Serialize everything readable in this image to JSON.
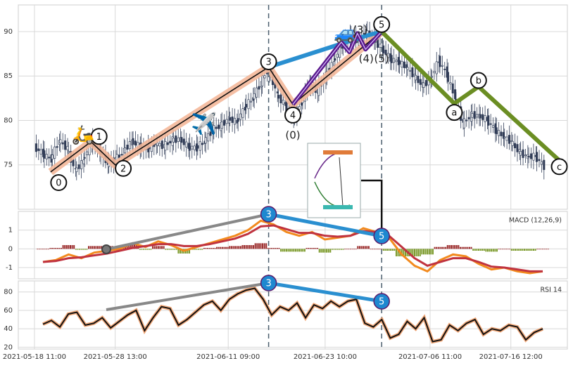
{
  "chart_data": [
    {
      "type": "candlestick",
      "panel": "price",
      "ylim": [
        70,
        93
      ],
      "yticks": [
        75,
        80,
        85,
        90
      ],
      "price_series": [
        [
          "2021-05-18",
          77.0
        ],
        [
          "2021-05-19",
          76.2
        ],
        [
          "2021-05-20",
          75.6
        ],
        [
          "2021-05-21",
          77.8
        ],
        [
          "2021-05-22",
          76.8
        ],
        [
          "2021-05-23",
          74.3
        ],
        [
          "2021-05-24",
          75.5
        ],
        [
          "2021-05-25",
          77.6
        ],
        [
          "2021-05-26",
          76.6
        ],
        [
          "2021-05-27",
          75.1
        ],
        [
          "2021-05-28",
          75.6
        ],
        [
          "2021-05-29",
          76.5
        ],
        [
          "2021-05-30",
          77.7
        ],
        [
          "2021-05-31",
          77.0
        ],
        [
          "2021-06-01",
          76.8
        ],
        [
          "2021-06-02",
          77.4
        ],
        [
          "2021-06-03",
          77.1
        ],
        [
          "2021-06-04",
          77.8
        ],
        [
          "2021-06-05",
          77.9
        ],
        [
          "2021-06-06",
          77.0
        ],
        [
          "2021-06-07",
          76.9
        ],
        [
          "2021-06-08",
          77.6
        ],
        [
          "2021-06-09",
          79.0
        ],
        [
          "2021-06-10",
          79.4
        ],
        [
          "2021-06-11",
          80.2
        ],
        [
          "2021-06-12",
          79.8
        ],
        [
          "2021-06-13",
          81.5
        ],
        [
          "2021-06-14",
          82.5
        ],
        [
          "2021-06-15",
          84.3
        ],
        [
          "2021-06-16",
          85.9
        ],
        [
          "2021-06-17",
          82.8
        ],
        [
          "2021-06-18",
          81.7
        ],
        [
          "2021-06-19",
          80.4
        ],
        [
          "2021-06-20",
          82.0
        ],
        [
          "2021-06-21",
          84.2
        ],
        [
          "2021-06-22",
          83.2
        ],
        [
          "2021-06-23",
          85.1
        ],
        [
          "2021-06-24",
          86.6
        ],
        [
          "2021-06-25",
          88.4
        ],
        [
          "2021-06-26",
          89.6
        ],
        [
          "2021-06-27",
          88.8
        ],
        [
          "2021-06-28",
          90.0
        ],
        [
          "2021-06-29",
          89.0
        ],
        [
          "2021-06-30",
          88.1
        ],
        [
          "2021-07-01",
          86.9
        ],
        [
          "2021-07-02",
          86.6
        ],
        [
          "2021-07-03",
          86.0
        ],
        [
          "2021-07-04",
          85.0
        ],
        [
          "2021-07-05",
          83.9
        ],
        [
          "2021-07-06",
          84.6
        ],
        [
          "2021-07-07",
          86.8
        ],
        [
          "2021-07-08",
          85.2
        ],
        [
          "2021-07-09",
          82.6
        ],
        [
          "2021-07-10",
          79.6
        ],
        [
          "2021-07-11",
          80.6
        ],
        [
          "2021-07-12",
          80.5
        ],
        [
          "2021-07-13",
          80.1
        ],
        [
          "2021-07-14",
          78.9
        ],
        [
          "2021-07-15",
          78.2
        ],
        [
          "2021-07-16",
          77.6
        ],
        [
          "2021-07-17",
          76.4
        ],
        [
          "2021-07-18",
          75.9
        ],
        [
          "2021-07-19",
          76.0
        ],
        [
          "2021-07-20",
          74.8
        ]
      ],
      "x_ticks": [
        {
          "date": "2021-05-18",
          "label": "2021-05-18 11:00"
        },
        {
          "date": "2021-05-28",
          "label": "2021-05-28 13:00"
        },
        {
          "date": "2021-06-11",
          "label": "2021-06-11 09:00"
        },
        {
          "date": "2021-06-23",
          "label": "2021-06-23 10:00"
        },
        {
          "date": "2021-07-06",
          "label": "2021-07-06 11:00"
        },
        {
          "date": "2021-07-16",
          "label": "2021-07-16 12:00"
        }
      ],
      "x_range": [
        "2021-05-16",
        "2021-07-23"
      ],
      "wave_labels": [
        {
          "label": "0",
          "date": "2021-05-21",
          "price": 73.0
        },
        {
          "label": "1",
          "date": "2021-05-26",
          "price": 78.2
        },
        {
          "label": "2",
          "date": "2021-05-29",
          "price": 74.6
        },
        {
          "label": "3",
          "date": "2021-06-16",
          "price": 86.6
        },
        {
          "label": "4",
          "date": "2021-06-19",
          "price": 80.6
        },
        {
          "label": "5",
          "date": "2021-06-30",
          "price": 90.8
        },
        {
          "label": "a",
          "date": "2021-07-09",
          "price": 80.9
        },
        {
          "label": "b",
          "date": "2021-07-12",
          "price": 84.5
        },
        {
          "label": "c",
          "date": "2021-07-22",
          "price": 74.8
        }
      ],
      "sub_wave_labels": [
        "(0)",
        "(3)",
        "(4)",
        "(5)"
      ],
      "wave_path_impulse": [
        [
          "2021-05-20",
          74.2
        ],
        [
          "2021-05-25",
          77.6
        ],
        [
          "2021-05-28",
          75.0
        ],
        [
          "2021-06-16",
          86.0
        ],
        [
          "2021-06-19",
          81.8
        ],
        [
          "2021-06-30",
          90.0
        ]
      ],
      "wave_path_correction": [
        [
          "2021-06-30",
          90.0
        ],
        [
          "2021-07-09",
          81.9
        ],
        [
          "2021-07-12",
          83.8
        ],
        [
          "2021-07-22",
          75.5
        ]
      ],
      "wave_path_blue": [
        [
          "2021-06-16",
          86.0
        ],
        [
          "2021-06-28",
          89.5
        ],
        [
          "2021-06-30",
          90.0
        ]
      ],
      "wave_path_purple": [
        [
          "2021-06-19",
          81.8
        ],
        [
          "2021-06-25",
          88.8
        ],
        [
          "2021-06-26",
          87.7
        ],
        [
          "2021-06-27",
          89.8
        ],
        [
          "2021-06-28",
          88.0
        ],
        [
          "2021-06-30",
          90.0
        ]
      ],
      "vertical_markers": [
        "2021-06-16",
        "2021-06-30"
      ],
      "icons": [
        "scooter-emoji",
        "airplane-emoji",
        "car-emoji",
        "pattern-inset-diagram"
      ]
    },
    {
      "type": "line",
      "panel": "macd",
      "legend": "MACD (12,26,9)",
      "ylim": [
        -1.6,
        2.0
      ],
      "yticks": [
        -1,
        0,
        1
      ],
      "series": [
        {
          "values": [
            -0.7,
            -0.6,
            -0.3,
            -0.5,
            -0.2,
            -0.1,
            0.0,
            0.3,
            0.1,
            0.4,
            0.2,
            -0.1,
            0.1,
            0.3,
            0.5,
            0.7,
            1.0,
            1.5,
            1.3,
            0.9,
            0.7,
            0.9,
            0.5,
            0.6,
            0.7,
            1.1,
            0.9,
            0.6,
            -0.3,
            -0.9,
            -1.2,
            -0.6,
            -0.3,
            -0.4,
            -0.8,
            -1.1,
            -1.0,
            -1.2,
            -1.3,
            -1.2
          ]
        },
        {
          "values": [
            -0.7,
            -0.65,
            -0.5,
            -0.45,
            -0.35,
            -0.25,
            -0.1,
            0.05,
            0.15,
            0.25,
            0.25,
            0.15,
            0.15,
            0.25,
            0.4,
            0.55,
            0.8,
            1.2,
            1.25,
            1.05,
            0.85,
            0.85,
            0.7,
            0.65,
            0.7,
            0.95,
            0.9,
            0.7,
            0.1,
            -0.5,
            -0.9,
            -0.7,
            -0.5,
            -0.5,
            -0.7,
            -0.95,
            -1.0,
            -1.1,
            -1.2,
            -1.2
          ]
        }
      ],
      "histogram": [
        0.0,
        0.05,
        0.2,
        -0.05,
        0.15,
        0.15,
        0.1,
        0.25,
        -0.05,
        0.15,
        -0.05,
        -0.25,
        -0.05,
        0.05,
        0.1,
        0.15,
        0.2,
        0.3,
        0.05,
        -0.15,
        -0.15,
        0.05,
        -0.2,
        -0.05,
        0.0,
        0.15,
        0.0,
        -0.1,
        -0.4,
        -0.4,
        -0.3,
        0.1,
        0.2,
        0.1,
        -0.1,
        -0.15,
        0.0,
        -0.1,
        -0.1,
        0.0
      ],
      "markers": [
        "3",
        "5"
      ]
    },
    {
      "type": "line",
      "panel": "rsi",
      "legend": "RSI 14",
      "ylim": [
        18,
        92
      ],
      "yticks": [
        20,
        40,
        60,
        80
      ],
      "values": [
        45,
        49,
        42,
        56,
        58,
        44,
        46,
        52,
        41,
        48,
        55,
        60,
        38,
        52,
        64,
        62,
        44,
        50,
        58,
        66,
        70,
        60,
        72,
        78,
        82,
        84,
        72,
        55,
        64,
        60,
        68,
        52,
        66,
        62,
        70,
        64,
        70,
        72,
        46,
        42,
        50,
        30,
        34,
        48,
        40,
        52,
        26,
        28,
        44,
        38,
        46,
        50,
        34,
        40,
        38,
        44,
        42,
        28,
        36,
        40
      ]
    }
  ]
}
